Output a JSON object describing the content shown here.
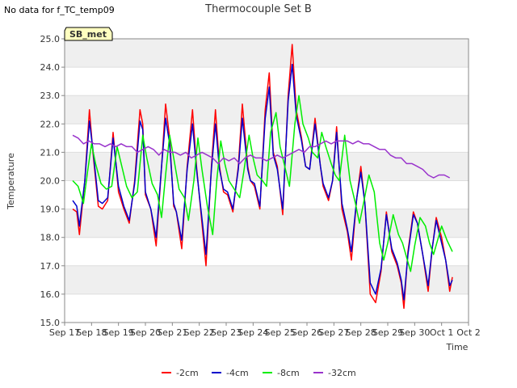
{
  "header": {
    "nodata": "No data for f_TC_temp09",
    "site_badge": "SB_met"
  },
  "colors": {
    "band": "#efefef",
    "axis": "#888888",
    "badge_fill": "#ffffc0",
    "badge_text": "#aa0000"
  },
  "chart_data": {
    "type": "line",
    "title": "Thermocouple Set B",
    "xlabel": "Time",
    "ylabel": "Temperature",
    "ylim": [
      15.0,
      25.0
    ],
    "xlim": [
      0,
      15
    ],
    "yticks": [
      15.0,
      16.0,
      17.0,
      18.0,
      19.0,
      20.0,
      21.0,
      22.0,
      23.0,
      24.0,
      25.0
    ],
    "xticks": [
      0,
      1,
      2,
      3,
      4,
      5,
      6,
      7,
      8,
      9,
      10,
      11,
      12,
      13,
      14,
      15
    ],
    "xtick_labels": [
      "Sep 17",
      "Sep 18",
      "Sep 19",
      "Sep 20",
      "Sep 21",
      "Sep 22",
      "Sep 23",
      "Sep 24",
      "Sep 25",
      "Sep 26",
      "Sep 27",
      "Sep 28",
      "Sep 29",
      "Sep 30",
      "Oct 1",
      "Oct 2"
    ],
    "grid": true,
    "legend_position": "bottom",
    "series": [
      {
        "name": "-2cm",
        "color": "#ff0000",
        "x": [
          0.3,
          0.45,
          0.55,
          0.75,
          0.92,
          1.05,
          1.25,
          1.4,
          1.6,
          1.8,
          2.0,
          2.2,
          2.4,
          2.6,
          2.8,
          2.9,
          3.0,
          3.2,
          3.4,
          3.6,
          3.75,
          3.9,
          4.05,
          4.15,
          4.35,
          4.55,
          4.75,
          4.9,
          5.05,
          5.25,
          5.45,
          5.6,
          5.75,
          5.9,
          6.05,
          6.25,
          6.45,
          6.6,
          6.8,
          6.9,
          7.05,
          7.25,
          7.45,
          7.6,
          7.75,
          7.9,
          8.1,
          8.3,
          8.45,
          8.6,
          8.8,
          8.95,
          9.1,
          9.3,
          9.5,
          9.6,
          9.8,
          9.95,
          10.1,
          10.3,
          10.5,
          10.65,
          10.85,
          11.0,
          11.15,
          11.35,
          11.55,
          11.75,
          11.95,
          12.15,
          12.35,
          12.5,
          12.6,
          12.75,
          12.95,
          13.1,
          13.3,
          13.5,
          13.65,
          13.8,
          14.0,
          14.15,
          14.3,
          14.4
        ],
        "values": [
          19.0,
          18.9,
          18.1,
          20.0,
          22.5,
          21.0,
          19.1,
          19.0,
          19.3,
          21.7,
          19.6,
          19.0,
          18.5,
          20.0,
          22.5,
          22.0,
          19.5,
          19.0,
          17.7,
          20.5,
          22.7,
          21.5,
          19.1,
          18.9,
          17.6,
          20.5,
          22.5,
          20.5,
          19.0,
          17.0,
          20.5,
          22.5,
          20.5,
          19.6,
          19.5,
          18.9,
          20.5,
          22.7,
          20.5,
          20.0,
          19.8,
          19.0,
          22.5,
          23.8,
          21.0,
          20.5,
          18.8,
          23.0,
          24.8,
          22.5,
          21.5,
          20.5,
          20.4,
          22.2,
          20.5,
          19.8,
          19.3,
          20.0,
          21.9,
          19.0,
          18.2,
          17.2,
          19.4,
          20.5,
          19.2,
          16.0,
          15.7,
          16.8,
          18.9,
          17.5,
          17.0,
          16.4,
          15.5,
          17.5,
          18.9,
          18.5,
          17.4,
          16.1,
          17.6,
          18.7,
          18.0,
          17.2,
          16.1,
          16.6
        ]
      },
      {
        "name": "-4cm",
        "color": "#0000cc",
        "x": [
          0.3,
          0.45,
          0.55,
          0.75,
          0.92,
          1.05,
          1.25,
          1.4,
          1.6,
          1.8,
          2.0,
          2.2,
          2.4,
          2.6,
          2.8,
          2.9,
          3.0,
          3.2,
          3.4,
          3.6,
          3.75,
          3.9,
          4.05,
          4.15,
          4.35,
          4.55,
          4.75,
          4.9,
          5.05,
          5.25,
          5.45,
          5.6,
          5.75,
          5.9,
          6.05,
          6.25,
          6.45,
          6.6,
          6.8,
          6.9,
          7.05,
          7.25,
          7.45,
          7.6,
          7.75,
          7.9,
          8.1,
          8.3,
          8.45,
          8.6,
          8.8,
          8.95,
          9.1,
          9.3,
          9.5,
          9.6,
          9.8,
          9.95,
          10.1,
          10.3,
          10.5,
          10.65,
          10.85,
          11.0,
          11.15,
          11.35,
          11.55,
          11.75,
          11.95,
          12.15,
          12.35,
          12.5,
          12.6,
          12.75,
          12.95,
          13.1,
          13.3,
          13.5,
          13.65,
          13.8,
          14.0,
          14.15,
          14.3,
          14.4
        ],
        "values": [
          19.3,
          19.1,
          18.4,
          20.0,
          22.1,
          21.1,
          19.3,
          19.2,
          19.4,
          21.5,
          19.8,
          19.1,
          18.6,
          19.9,
          22.1,
          21.8,
          19.6,
          19.0,
          18.0,
          20.5,
          22.2,
          21.3,
          19.2,
          18.9,
          17.9,
          20.4,
          22.0,
          20.4,
          19.1,
          17.4,
          20.4,
          22.0,
          20.4,
          19.7,
          19.6,
          19.0,
          20.4,
          22.2,
          20.4,
          20.0,
          19.9,
          19.1,
          22.2,
          23.3,
          20.9,
          20.4,
          19.0,
          22.8,
          24.1,
          22.3,
          21.4,
          20.5,
          20.4,
          22.0,
          20.5,
          19.9,
          19.4,
          20.0,
          21.7,
          19.2,
          18.3,
          17.5,
          19.4,
          20.3,
          19.2,
          16.4,
          16.0,
          16.9,
          18.8,
          17.6,
          17.1,
          16.5,
          15.8,
          17.4,
          18.8,
          18.5,
          17.4,
          16.3,
          17.6,
          18.6,
          17.8,
          17.2,
          16.3,
          16.5
        ]
      },
      {
        "name": "-8cm",
        "color": "#00ee00",
        "x": [
          0.3,
          0.5,
          0.7,
          0.85,
          1.0,
          1.15,
          1.35,
          1.55,
          1.75,
          1.95,
          2.1,
          2.3,
          2.5,
          2.7,
          2.9,
          3.05,
          3.25,
          3.45,
          3.6,
          3.75,
          3.9,
          4.05,
          4.25,
          4.45,
          4.6,
          4.8,
          4.95,
          5.1,
          5.3,
          5.5,
          5.65,
          5.8,
          5.95,
          6.1,
          6.3,
          6.5,
          6.65,
          6.85,
          7.0,
          7.15,
          7.35,
          7.5,
          7.65,
          7.85,
          8.0,
          8.15,
          8.35,
          8.55,
          8.7,
          8.85,
          9.05,
          9.2,
          9.4,
          9.55,
          9.7,
          9.9,
          10.05,
          10.2,
          10.4,
          10.6,
          10.8,
          10.95,
          11.1,
          11.3,
          11.5,
          11.7,
          11.85,
          12.0,
          12.2,
          12.4,
          12.55,
          12.7,
          12.85,
          13.0,
          13.2,
          13.4,
          13.55,
          13.7,
          13.85,
          14.0,
          14.2,
          14.4
        ],
        "values": [
          20.0,
          19.8,
          19.2,
          20.3,
          21.3,
          20.6,
          19.9,
          19.7,
          19.8,
          21.2,
          20.6,
          19.8,
          19.4,
          19.6,
          21.6,
          20.8,
          19.9,
          19.5,
          18.7,
          20.2,
          21.6,
          20.8,
          19.7,
          19.4,
          18.6,
          20.0,
          21.5,
          20.4,
          19.1,
          18.1,
          20.0,
          21.4,
          20.6,
          20.0,
          19.7,
          19.4,
          20.3,
          21.6,
          20.8,
          20.2,
          20.0,
          19.8,
          21.7,
          22.4,
          21.2,
          20.6,
          19.8,
          22.0,
          23.0,
          22.0,
          21.5,
          21.0,
          20.8,
          21.7,
          21.2,
          20.6,
          20.2,
          20.0,
          21.6,
          20.0,
          19.2,
          18.5,
          19.2,
          20.2,
          19.6,
          17.8,
          17.2,
          17.8,
          18.8,
          18.1,
          17.8,
          17.3,
          16.8,
          17.7,
          18.7,
          18.4,
          17.8,
          17.4,
          17.9,
          18.4,
          17.9,
          17.5
        ]
      },
      {
        "name": "-32cm",
        "color": "#9933cc",
        "x": [
          0.3,
          0.5,
          0.7,
          0.9,
          1.1,
          1.3,
          1.5,
          1.7,
          1.9,
          2.1,
          2.3,
          2.5,
          2.7,
          2.9,
          3.1,
          3.3,
          3.5,
          3.7,
          3.9,
          4.1,
          4.3,
          4.5,
          4.7,
          4.9,
          5.1,
          5.3,
          5.5,
          5.7,
          5.9,
          6.1,
          6.3,
          6.5,
          6.7,
          6.9,
          7.1,
          7.3,
          7.5,
          7.7,
          7.9,
          8.1,
          8.3,
          8.5,
          8.7,
          8.9,
          9.1,
          9.3,
          9.5,
          9.7,
          9.9,
          10.1,
          10.3,
          10.5,
          10.7,
          10.9,
          11.1,
          11.3,
          11.5,
          11.7,
          11.9,
          12.1,
          12.3,
          12.5,
          12.7,
          12.9,
          13.1,
          13.3,
          13.5,
          13.7,
          13.9,
          14.1,
          14.3
        ],
        "values": [
          21.6,
          21.5,
          21.3,
          21.4,
          21.3,
          21.3,
          21.2,
          21.3,
          21.2,
          21.3,
          21.2,
          21.2,
          21.0,
          21.1,
          21.2,
          21.1,
          20.9,
          21.1,
          21.0,
          21.0,
          20.9,
          21.0,
          20.8,
          20.9,
          21.0,
          20.9,
          20.8,
          20.6,
          20.8,
          20.7,
          20.8,
          20.6,
          20.8,
          20.9,
          20.8,
          20.8,
          20.7,
          20.8,
          20.9,
          20.8,
          20.9,
          21.0,
          21.1,
          21.0,
          21.2,
          21.2,
          21.3,
          21.4,
          21.3,
          21.4,
          21.4,
          21.4,
          21.3,
          21.4,
          21.3,
          21.3,
          21.2,
          21.1,
          21.1,
          20.9,
          20.8,
          20.8,
          20.6,
          20.6,
          20.5,
          20.4,
          20.2,
          20.1,
          20.2,
          20.2,
          20.1
        ]
      }
    ]
  }
}
